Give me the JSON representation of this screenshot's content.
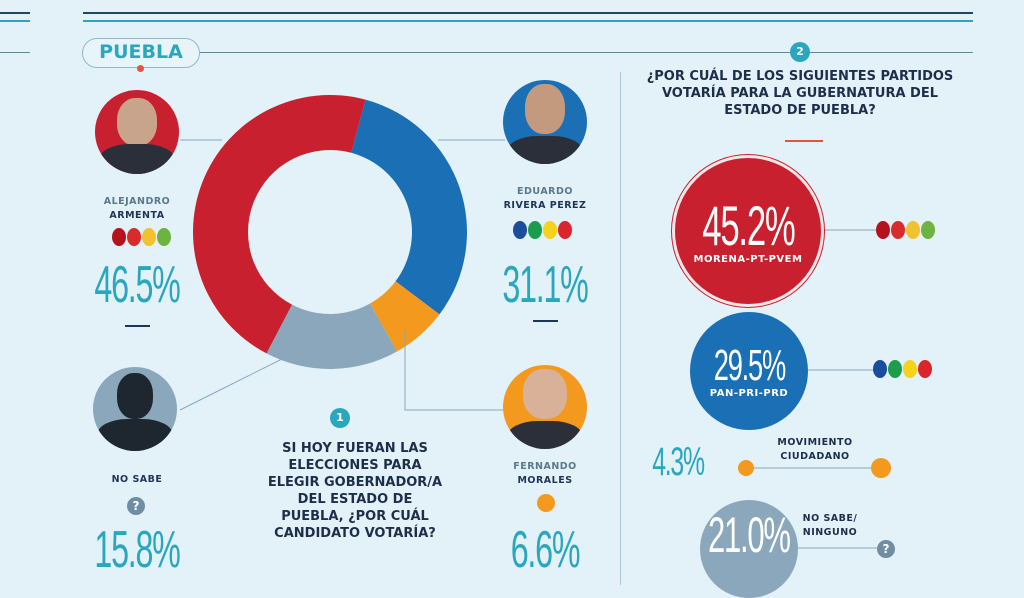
{
  "header": {
    "state": "PUEBLA",
    "question2_number": "2",
    "question1_number": "1"
  },
  "question1": [
    "SI HOY FUERAN LAS",
    "ELECCIONES PARA",
    "ELEGIR GOBERNADOR/A",
    "DEL ESTADO DE",
    "PUEBLA, ¿POR CUÁL",
    "CANDIDATO VOTARÍA?"
  ],
  "question2": [
    "¿POR CUÁL DE LOS SIGUIENTES PARTIDOS",
    "VOTARÍA PARA LA GUBERNATURA DEL",
    "ESTADO DE PUEBLA?"
  ],
  "candidates": [
    {
      "first": "ALEJANDRO",
      "last": "ARMENTA",
      "pct": "46.5%",
      "color": "#c8202f"
    },
    {
      "first": "EDUARDO",
      "last": "RIVERA PEREZ",
      "pct": "31.1%",
      "color": "#1a6fb5"
    },
    {
      "first": "",
      "last": "NO SABE",
      "pct": "15.8%",
      "color": "#8aa7bb"
    },
    {
      "first": "FERNANDO",
      "last": "MORALES",
      "pct": "6.6%",
      "color": "#f39a1e"
    }
  ],
  "parties": [
    {
      "pct": "45.2%",
      "label": "MORENA-PT-PVEM",
      "color": "#c8202f"
    },
    {
      "pct": "29.5%",
      "label": "PAN-PRI-PRD",
      "color": "#1a6fb5"
    },
    {
      "pct": "4.3%",
      "label1": "MOVIMIENTO",
      "label2": "CIUDADANO",
      "color": "#f39a1e"
    },
    {
      "pct": "21.0%",
      "label1": "NO SABE/",
      "label2": "NINGUNO",
      "color": "#8aa7bb"
    }
  ],
  "chart_data": {
    "type": "pie",
    "donut": true,
    "categories": [
      "Eduardo Rivera Perez",
      "Fernando Morales",
      "No sabe",
      "Alejandro Armenta"
    ],
    "values": [
      31.1,
      6.6,
      15.8,
      46.5
    ],
    "colors": [
      "#1a6fb5",
      "#f39a1e",
      "#8aa7bb",
      "#c8202f"
    ]
  }
}
